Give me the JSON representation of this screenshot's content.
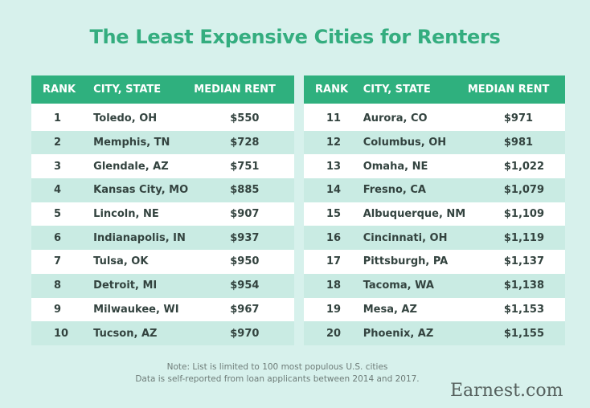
{
  "title": "The Least Expensive Cities for Renters",
  "columns": [
    "RANK",
    "CITY, STATE",
    "MEDIAN RENT"
  ],
  "left_table": [
    {
      "rank": "1",
      "city": "Toledo, OH",
      "rent": "$550"
    },
    {
      "rank": "2",
      "city": "Memphis, TN",
      "rent": "$728"
    },
    {
      "rank": "3",
      "city": "Glendale, AZ",
      "rent": "$751"
    },
    {
      "rank": "4",
      "city": "Kansas City, MO",
      "rent": "$885"
    },
    {
      "rank": "5",
      "city": "Lincoln, NE",
      "rent": "$907"
    },
    {
      "rank": "6",
      "city": "Indianapolis, IN",
      "rent": "$937"
    },
    {
      "rank": "7",
      "city": "Tulsa, OK",
      "rent": "$950"
    },
    {
      "rank": "8",
      "city": "Detroit, MI",
      "rent": "$954"
    },
    {
      "rank": "9",
      "city": "Milwaukee, WI",
      "rent": "$967"
    },
    {
      "rank": "10",
      "city": "Tucson, AZ",
      "rent": "$970"
    }
  ],
  "right_table": [
    {
      "rank": "11",
      "city": "Aurora, CO",
      "rent": "$971"
    },
    {
      "rank": "12",
      "city": "Columbus, OH",
      "rent": "$981"
    },
    {
      "rank": "13",
      "city": "Omaha, NE",
      "rent": "$1,022"
    },
    {
      "rank": "14",
      "city": "Fresno, CA",
      "rent": "$1,079"
    },
    {
      "rank": "15",
      "city": "Albuquerque, NM",
      "rent": "$1,109"
    },
    {
      "rank": "16",
      "city": "Cincinnati, OH",
      "rent": "$1,119"
    },
    {
      "rank": "17",
      "city": "Pittsburgh, PA",
      "rent": "$1,137"
    },
    {
      "rank": "18",
      "city": "Tacoma, WA",
      "rent": "$1,138"
    },
    {
      "rank": "19",
      "city": "Mesa, AZ",
      "rent": "$1,153"
    },
    {
      "rank": "20",
      "city": "Phoenix, AZ",
      "rent": "$1,155"
    }
  ],
  "note": {
    "line1": "Note: List is limited to 100 most populous U.S. cities",
    "line2": "Data is self-reported from loan applicants between 2014 and 2017."
  },
  "brand": "Earnest.com",
  "colors": {
    "background": "#d7f1ec",
    "header": "#2fb07e",
    "title": "#34ad7f",
    "row_alt": "#c9ebe3",
    "row": "#ffffff"
  },
  "chart_data": {
    "type": "table",
    "title": "The Least Expensive Cities for Renters",
    "columns": [
      "RANK",
      "CITY, STATE",
      "MEDIAN RENT"
    ],
    "rows": [
      [
        1,
        "Toledo, OH",
        550
      ],
      [
        2,
        "Memphis, TN",
        728
      ],
      [
        3,
        "Glendale, AZ",
        751
      ],
      [
        4,
        "Kansas City, MO",
        885
      ],
      [
        5,
        "Lincoln, NE",
        907
      ],
      [
        6,
        "Indianapolis, IN",
        937
      ],
      [
        7,
        "Tulsa, OK",
        950
      ],
      [
        8,
        "Detroit, MI",
        954
      ],
      [
        9,
        "Milwaukee, WI",
        967
      ],
      [
        10,
        "Tucson, AZ",
        970
      ],
      [
        11,
        "Aurora, CO",
        971
      ],
      [
        12,
        "Columbus, OH",
        981
      ],
      [
        13,
        "Omaha, NE",
        1022
      ],
      [
        14,
        "Fresno, CA",
        1079
      ],
      [
        15,
        "Albuquerque, NM",
        1109
      ],
      [
        16,
        "Cincinnati, OH",
        1119
      ],
      [
        17,
        "Pittsburgh, PA",
        1137
      ],
      [
        18,
        "Tacoma, WA",
        1138
      ],
      [
        19,
        "Mesa, AZ",
        1153
      ],
      [
        20,
        "Phoenix, AZ",
        1155
      ]
    ],
    "annotations": [
      "Note: List is limited to 100 most populous U.S. cities",
      "Data is self-reported from loan applicants between 2014 and 2017."
    ]
  }
}
